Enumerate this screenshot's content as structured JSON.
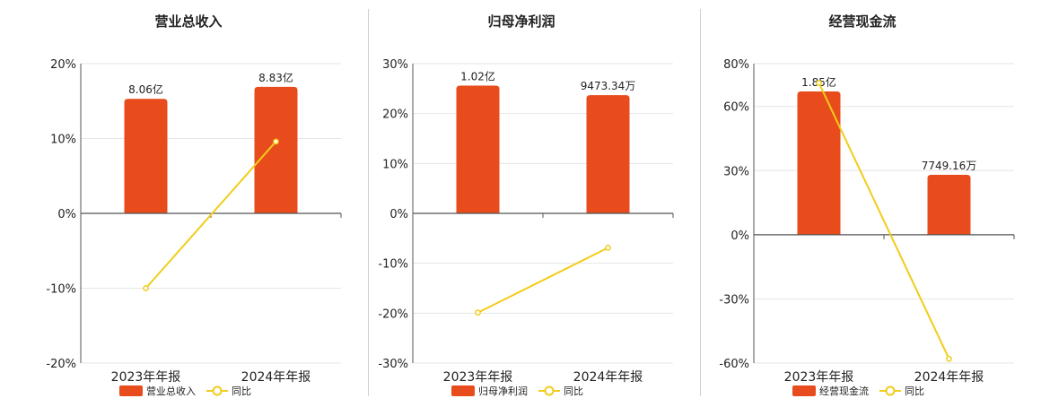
{
  "chart_data": [
    {
      "type": "bar",
      "title": "营业总收入",
      "categories": [
        "2023年年报",
        "2024年年报"
      ],
      "bar_series_name": "营业总收入",
      "bar_relative_heights": [
        15.3,
        16.9
      ],
      "bar_labels": [
        "8.06亿",
        "8.83亿"
      ],
      "line_series_name": "同比",
      "line_values": [
        -10.0,
        9.6
      ],
      "ylim": [
        -20,
        20
      ],
      "yticks": [
        20,
        10,
        0,
        -10,
        -20
      ],
      "ytick_labels": [
        "20%",
        "10%",
        "0%",
        "-10%",
        "-20%"
      ],
      "legend_position": "bottom"
    },
    {
      "type": "bar",
      "title": "归母净利润",
      "categories": [
        "2023年年报",
        "2024年年报"
      ],
      "bar_series_name": "归母净利润",
      "bar_relative_heights": [
        25.6,
        23.7
      ],
      "bar_labels": [
        "1.02亿",
        "9473.34万"
      ],
      "line_series_name": "同比",
      "line_values": [
        -19.9,
        -6.9
      ],
      "ylim": [
        -30,
        30
      ],
      "yticks": [
        30,
        20,
        10,
        0,
        -10,
        -20,
        -30
      ],
      "ytick_labels": [
        "30%",
        "20%",
        "10%",
        "0%",
        "-10%",
        "-20%",
        "-30%"
      ],
      "legend_position": "bottom"
    },
    {
      "type": "bar",
      "title": "经营现金流",
      "categories": [
        "2023年年报",
        "2024年年报"
      ],
      "bar_series_name": "经营现金流",
      "bar_relative_heights": [
        67,
        28
      ],
      "bar_labels": [
        "1.85亿",
        "7749.16万"
      ],
      "line_series_name": "同比",
      "line_values": [
        71,
        -58
      ],
      "ylim": [
        -60,
        80
      ],
      "yticks": [
        80,
        60,
        30,
        0,
        -30,
        -60
      ],
      "ytick_labels": [
        "80%",
        "60%",
        "30%",
        "0%",
        "-30%",
        "-60%"
      ],
      "legend_position": "bottom"
    }
  ],
  "colors": {
    "bar": "#e84c1c",
    "line": "#f2cc1a",
    "grid": "#e6e6e6",
    "axis": "#555555",
    "text": "#222222"
  }
}
